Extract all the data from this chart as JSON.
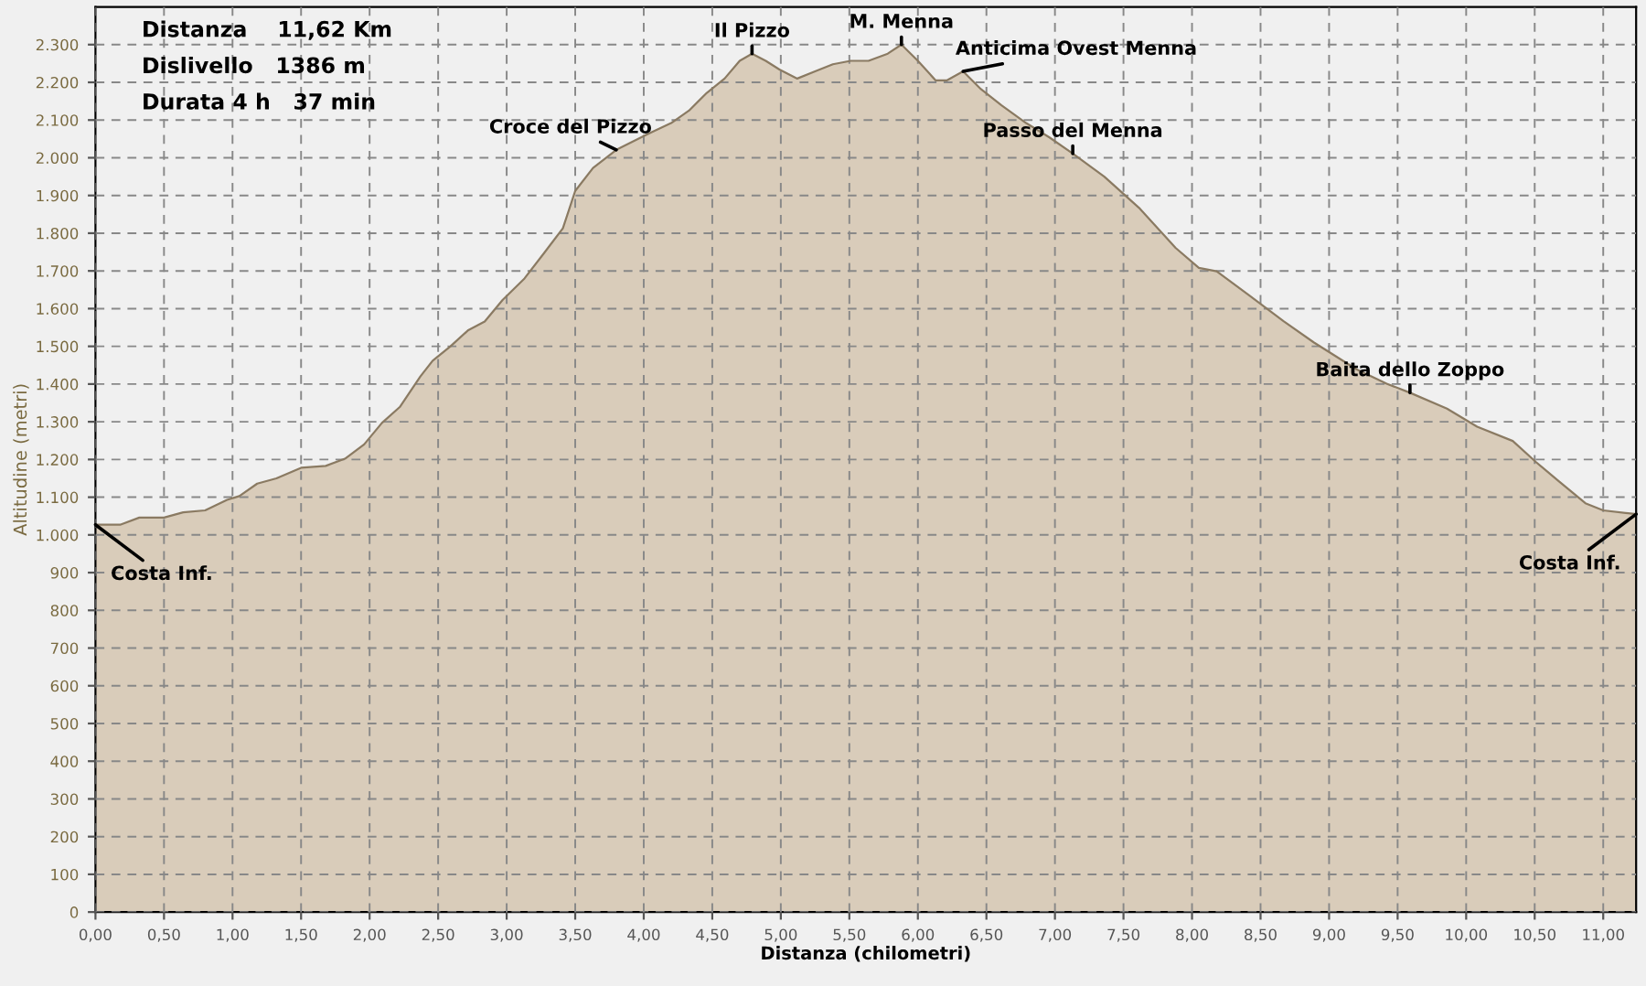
{
  "chart_data": {
    "type": "area",
    "xlabel": "Distanza (chilometri)",
    "ylabel": "Altitudine (metri)",
    "x": [
      0,
      0.18,
      0.32,
      0.5,
      0.64,
      0.8,
      0.96,
      1.05,
      1.18,
      1.32,
      1.5,
      1.68,
      1.82,
      1.96,
      2.09,
      2.22,
      2.37,
      2.46,
      2.59,
      2.72,
      2.84,
      2.97,
      3.13,
      3.27,
      3.41,
      3.5,
      3.63,
      3.8,
      4.03,
      4.2,
      4.33,
      4.46,
      4.59,
      4.7,
      4.79,
      4.89,
      4.99,
      5.12,
      5.25,
      5.38,
      5.51,
      5.64,
      5.78,
      5.88,
      6.0,
      6.13,
      6.21,
      6.33,
      6.46,
      6.61,
      6.79,
      6.96,
      7.13,
      7.36,
      7.62,
      7.88,
      8.05,
      8.18,
      8.41,
      8.67,
      8.89,
      9.2,
      9.42,
      9.59,
      9.86,
      10.08,
      10.34,
      10.51,
      10.68,
      10.87,
      11.0,
      11.24
    ],
    "series": [
      {
        "color": "#d9ccba",
        "values": [
          1027,
          1027,
          1046,
          1046,
          1060,
          1065,
          1093,
          1103,
          1136,
          1150,
          1178,
          1183,
          1202,
          1240,
          1297,
          1339,
          1420,
          1462,
          1500,
          1543,
          1566,
          1623,
          1680,
          1746,
          1813,
          1912,
          1973,
          2021,
          2063,
          2092,
          2125,
          2172,
          2210,
          2257,
          2276,
          2257,
          2234,
          2210,
          2229,
          2248,
          2257,
          2257,
          2276,
          2300,
          2257,
          2205,
          2205,
          2229,
          2182,
          2139,
          2092,
          2054,
          2011,
          1950,
          1865,
          1761,
          1708,
          1699,
          1637,
          1566,
          1510,
          1439,
          1401,
          1377,
          1335,
          1287,
          1249,
          1193,
          1141,
          1084,
          1065,
          1055
        ]
      }
    ],
    "xlim": [
      0,
      11.24
    ],
    "ylim": [
      0,
      2400
    ],
    "xticks": [
      {
        "value": 0,
        "label": "0,00"
      },
      {
        "value": 0.5,
        "label": "0,50"
      },
      {
        "value": 1,
        "label": "1,00"
      },
      {
        "value": 1.5,
        "label": "1,50"
      },
      {
        "value": 2,
        "label": "2,00"
      },
      {
        "value": 2.5,
        "label": "2,50"
      },
      {
        "value": 3,
        "label": "3,00"
      },
      {
        "value": 3.5,
        "label": "3,50"
      },
      {
        "value": 4,
        "label": "4,00"
      },
      {
        "value": 4.5,
        "label": "4,50"
      },
      {
        "value": 5,
        "label": "5,00"
      },
      {
        "value": 5.5,
        "label": "5,50"
      },
      {
        "value": 6,
        "label": "6,00"
      },
      {
        "value": 6.5,
        "label": "6,50"
      },
      {
        "value": 7,
        "label": "7,00"
      },
      {
        "value": 7.5,
        "label": "7,50"
      },
      {
        "value": 8,
        "label": "8,00"
      },
      {
        "value": 8.5,
        "label": "8,50"
      },
      {
        "value": 9,
        "label": "9,00"
      },
      {
        "value": 9.5,
        "label": "9,50"
      },
      {
        "value": 10,
        "label": "10,00"
      },
      {
        "value": 10.5,
        "label": "10,50"
      },
      {
        "value": 11,
        "label": "11,00"
      }
    ],
    "yticks": [
      0,
      100,
      200,
      300,
      400,
      500,
      600,
      700,
      800,
      900,
      {
        "value": 1000,
        "label": "1.000"
      },
      {
        "value": 1100,
        "label": "1.100"
      },
      {
        "value": 1200,
        "label": "1.200"
      },
      {
        "value": 1300,
        "label": "1.300"
      },
      {
        "value": 1400,
        "label": "1.400"
      },
      {
        "value": 1500,
        "label": "1.500"
      },
      {
        "value": 1600,
        "label": "1.600"
      },
      {
        "value": 1700,
        "label": "1.700"
      },
      {
        "value": 1800,
        "label": "1.800"
      },
      {
        "value": 1900,
        "label": "1.900"
      },
      {
        "value": 2000,
        "label": "2.000"
      },
      {
        "value": 2100,
        "label": "2.100"
      },
      {
        "value": 2200,
        "label": "2.200"
      },
      {
        "value": 2300,
        "label": "2.300"
      }
    ],
    "grid": true,
    "line_style": "dashed",
    "annotations": [
      "Distanza    11,62 Km",
      "Dislivello   1386 m",
      "Durata 4 h   37 min",
      {
        "text": "Costa Inf.",
        "x": 0,
        "y": 1027
      },
      {
        "text": "Croce del Pizzo",
        "x": 3.8,
        "y": 2021
      },
      {
        "text": "Il Pizzo",
        "x": 4.79,
        "y": 2276
      },
      {
        "text": "M. Menna",
        "x": 5.88,
        "y": 2300
      },
      {
        "text": "Anticima Ovest Menna",
        "x": 6.33,
        "y": 2229
      },
      {
        "text": "Passo del Menna",
        "x": 7.13,
        "y": 2011
      },
      {
        "text": "Baita dello Zoppo",
        "x": 9.59,
        "y": 1377
      },
      {
        "text": "Costa Inf.",
        "x": 11.24,
        "y": 1055
      }
    ]
  }
}
